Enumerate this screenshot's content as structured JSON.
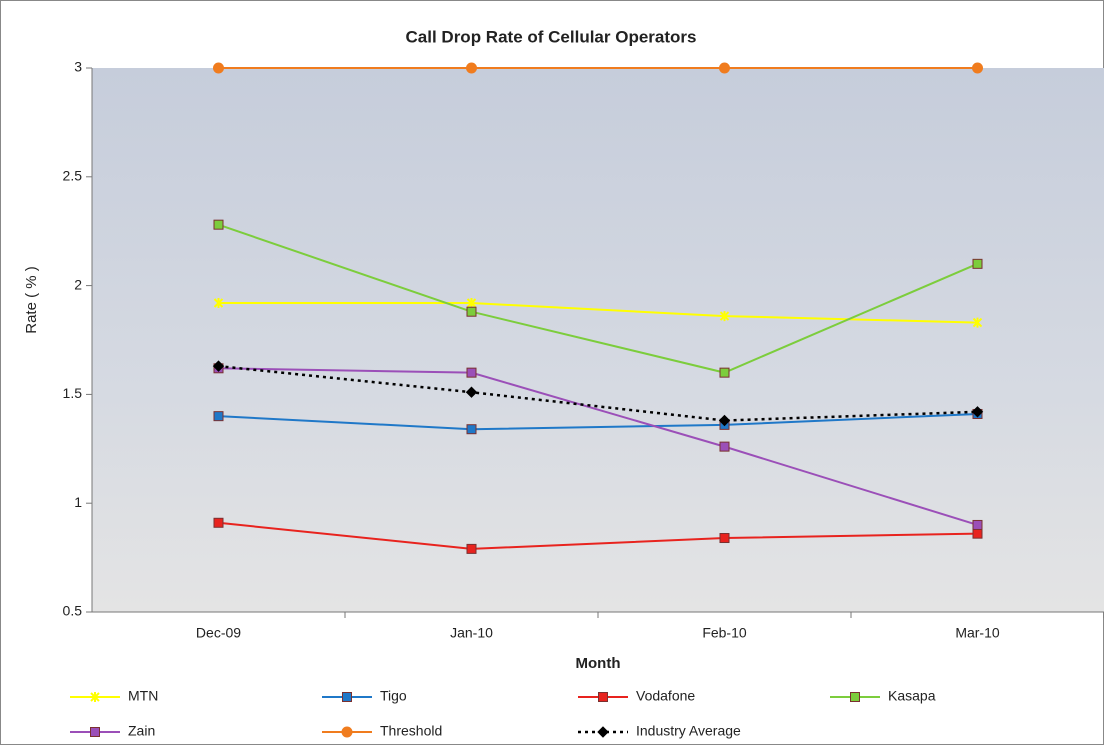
{
  "chart_data": {
    "type": "line",
    "title": "Call Drop Rate of Cellular Operators",
    "x_label": "Month",
    "y_label": "Rate ( % )",
    "categories": [
      "Dec-09",
      "Jan-10",
      "Feb-10",
      "Mar-10"
    ],
    "ylim": [
      0.5,
      3
    ],
    "yticks": [
      0.5,
      1,
      1.5,
      2,
      2.5,
      3
    ],
    "legend": "bottom",
    "series": [
      {
        "name": "MTN",
        "color": "#ffff00",
        "marker": "star",
        "values": [
          1.92,
          1.92,
          1.86,
          1.83
        ]
      },
      {
        "name": "Tigo",
        "color": "#1f78c8",
        "marker": "square",
        "values": [
          1.4,
          1.34,
          1.36,
          1.41
        ]
      },
      {
        "name": "Vodafone",
        "color": "#e8231e",
        "marker": "square",
        "values": [
          0.91,
          0.79,
          0.84,
          0.86
        ]
      },
      {
        "name": "Kasapa",
        "color": "#7ccd3c",
        "marker": "square",
        "values": [
          2.28,
          1.88,
          1.6,
          2.1
        ]
      },
      {
        "name": "Zain",
        "color": "#9b4fb8",
        "marker": "square",
        "values": [
          1.62,
          1.6,
          1.26,
          0.9
        ]
      },
      {
        "name": "Threshold",
        "color": "#f07c1e",
        "marker": "circle",
        "values": [
          3,
          3,
          3,
          3
        ]
      },
      {
        "name": "Industry Average",
        "color": "#000000",
        "marker": "diamond",
        "dashed": true,
        "values": [
          1.63,
          1.51,
          1.38,
          1.42
        ]
      }
    ]
  }
}
